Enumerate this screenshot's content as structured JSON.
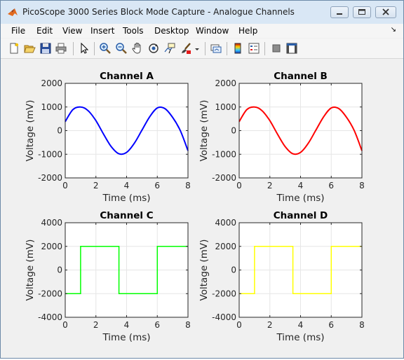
{
  "window": {
    "title": "PicoScope 3000 Series Block Mode Capture - Analogue Channels"
  },
  "menu": [
    "File",
    "Edit",
    "View",
    "Insert",
    "Tools",
    "Desktop",
    "Window",
    "Help"
  ],
  "toolbar": {
    "icons": [
      "new-figure-icon",
      "open-file-icon",
      "save-icon",
      "print-icon",
      "pointer-icon",
      "zoom-in-icon",
      "zoom-out-icon",
      "pan-hand-icon",
      "rotate-3d-icon",
      "data-cursor-icon",
      "brush-icon",
      "link-plot-icon",
      "colorbar-icon",
      "legend-icon",
      "hide-plot-tools-icon",
      "show-plot-tools-icon"
    ]
  },
  "chart_data": [
    {
      "type": "line",
      "title": "Channel A",
      "xlabel": "Time (ms)",
      "ylabel": "Voltage (mV)",
      "xlim": [
        0,
        8
      ],
      "ylim": [
        -2000,
        2000
      ],
      "xticks": [
        0,
        2,
        4,
        6,
        8
      ],
      "yticks": [
        -2000,
        -1000,
        0,
        1000,
        2000
      ],
      "grid": true,
      "color": "#0000ff",
      "series": [
        {
          "x": [
            0,
            0.5,
            1,
            1.5,
            2,
            2.5,
            3,
            3.5,
            4,
            4.5,
            5,
            5.5,
            6,
            6.5,
            7,
            7.5,
            8
          ],
          "y": [
            380,
            890,
            1000,
            840,
            420,
            -150,
            -680,
            -980,
            -920,
            -540,
            20,
            580,
            960,
            930,
            560,
            0,
            -850
          ]
        }
      ]
    },
    {
      "type": "line",
      "title": "Channel B",
      "xlabel": "Time (ms)",
      "ylabel": "Voltage (mV)",
      "xlim": [
        0,
        8
      ],
      "ylim": [
        -2000,
        2000
      ],
      "xticks": [
        0,
        2,
        4,
        6,
        8
      ],
      "yticks": [
        -2000,
        -1000,
        0,
        1000,
        2000
      ],
      "grid": true,
      "color": "#ff0000",
      "series": [
        {
          "x": [
            0,
            0.5,
            1,
            1.5,
            2,
            2.5,
            3,
            3.5,
            4,
            4.5,
            5,
            5.5,
            6,
            6.5,
            7,
            7.5,
            8
          ],
          "y": [
            380,
            890,
            1000,
            840,
            420,
            -150,
            -680,
            -980,
            -920,
            -540,
            20,
            580,
            960,
            930,
            560,
            0,
            -850
          ]
        }
      ]
    },
    {
      "type": "line",
      "title": "Channel C",
      "xlabel": "Time (ms)",
      "ylabel": "Voltage (mV)",
      "xlim": [
        0,
        8
      ],
      "ylim": [
        -4000,
        4000
      ],
      "xticks": [
        0,
        2,
        4,
        6,
        8
      ],
      "yticks": [
        -4000,
        -2000,
        0,
        2000,
        4000
      ],
      "grid": true,
      "color": "#00ff00",
      "series": [
        {
          "x": [
            0,
            1,
            1,
            3.5,
            3.5,
            6,
            6,
            8
          ],
          "y": [
            -2000,
            -2000,
            2000,
            2000,
            -2000,
            -2000,
            2000,
            2000
          ]
        }
      ]
    },
    {
      "type": "line",
      "title": "Channel D",
      "xlabel": "Time (ms)",
      "ylabel": "Voltage (mV)",
      "xlim": [
        0,
        8
      ],
      "ylim": [
        -4000,
        4000
      ],
      "xticks": [
        0,
        2,
        4,
        6,
        8
      ],
      "yticks": [
        -4000,
        -2000,
        0,
        2000,
        4000
      ],
      "grid": true,
      "color": "#ffff00",
      "series": [
        {
          "x": [
            0,
            1,
            1,
            3.5,
            3.5,
            6,
            6,
            8
          ],
          "y": [
            -2000,
            -2000,
            2000,
            2000,
            -2000,
            -2000,
            2000,
            2000
          ]
        }
      ]
    }
  ]
}
